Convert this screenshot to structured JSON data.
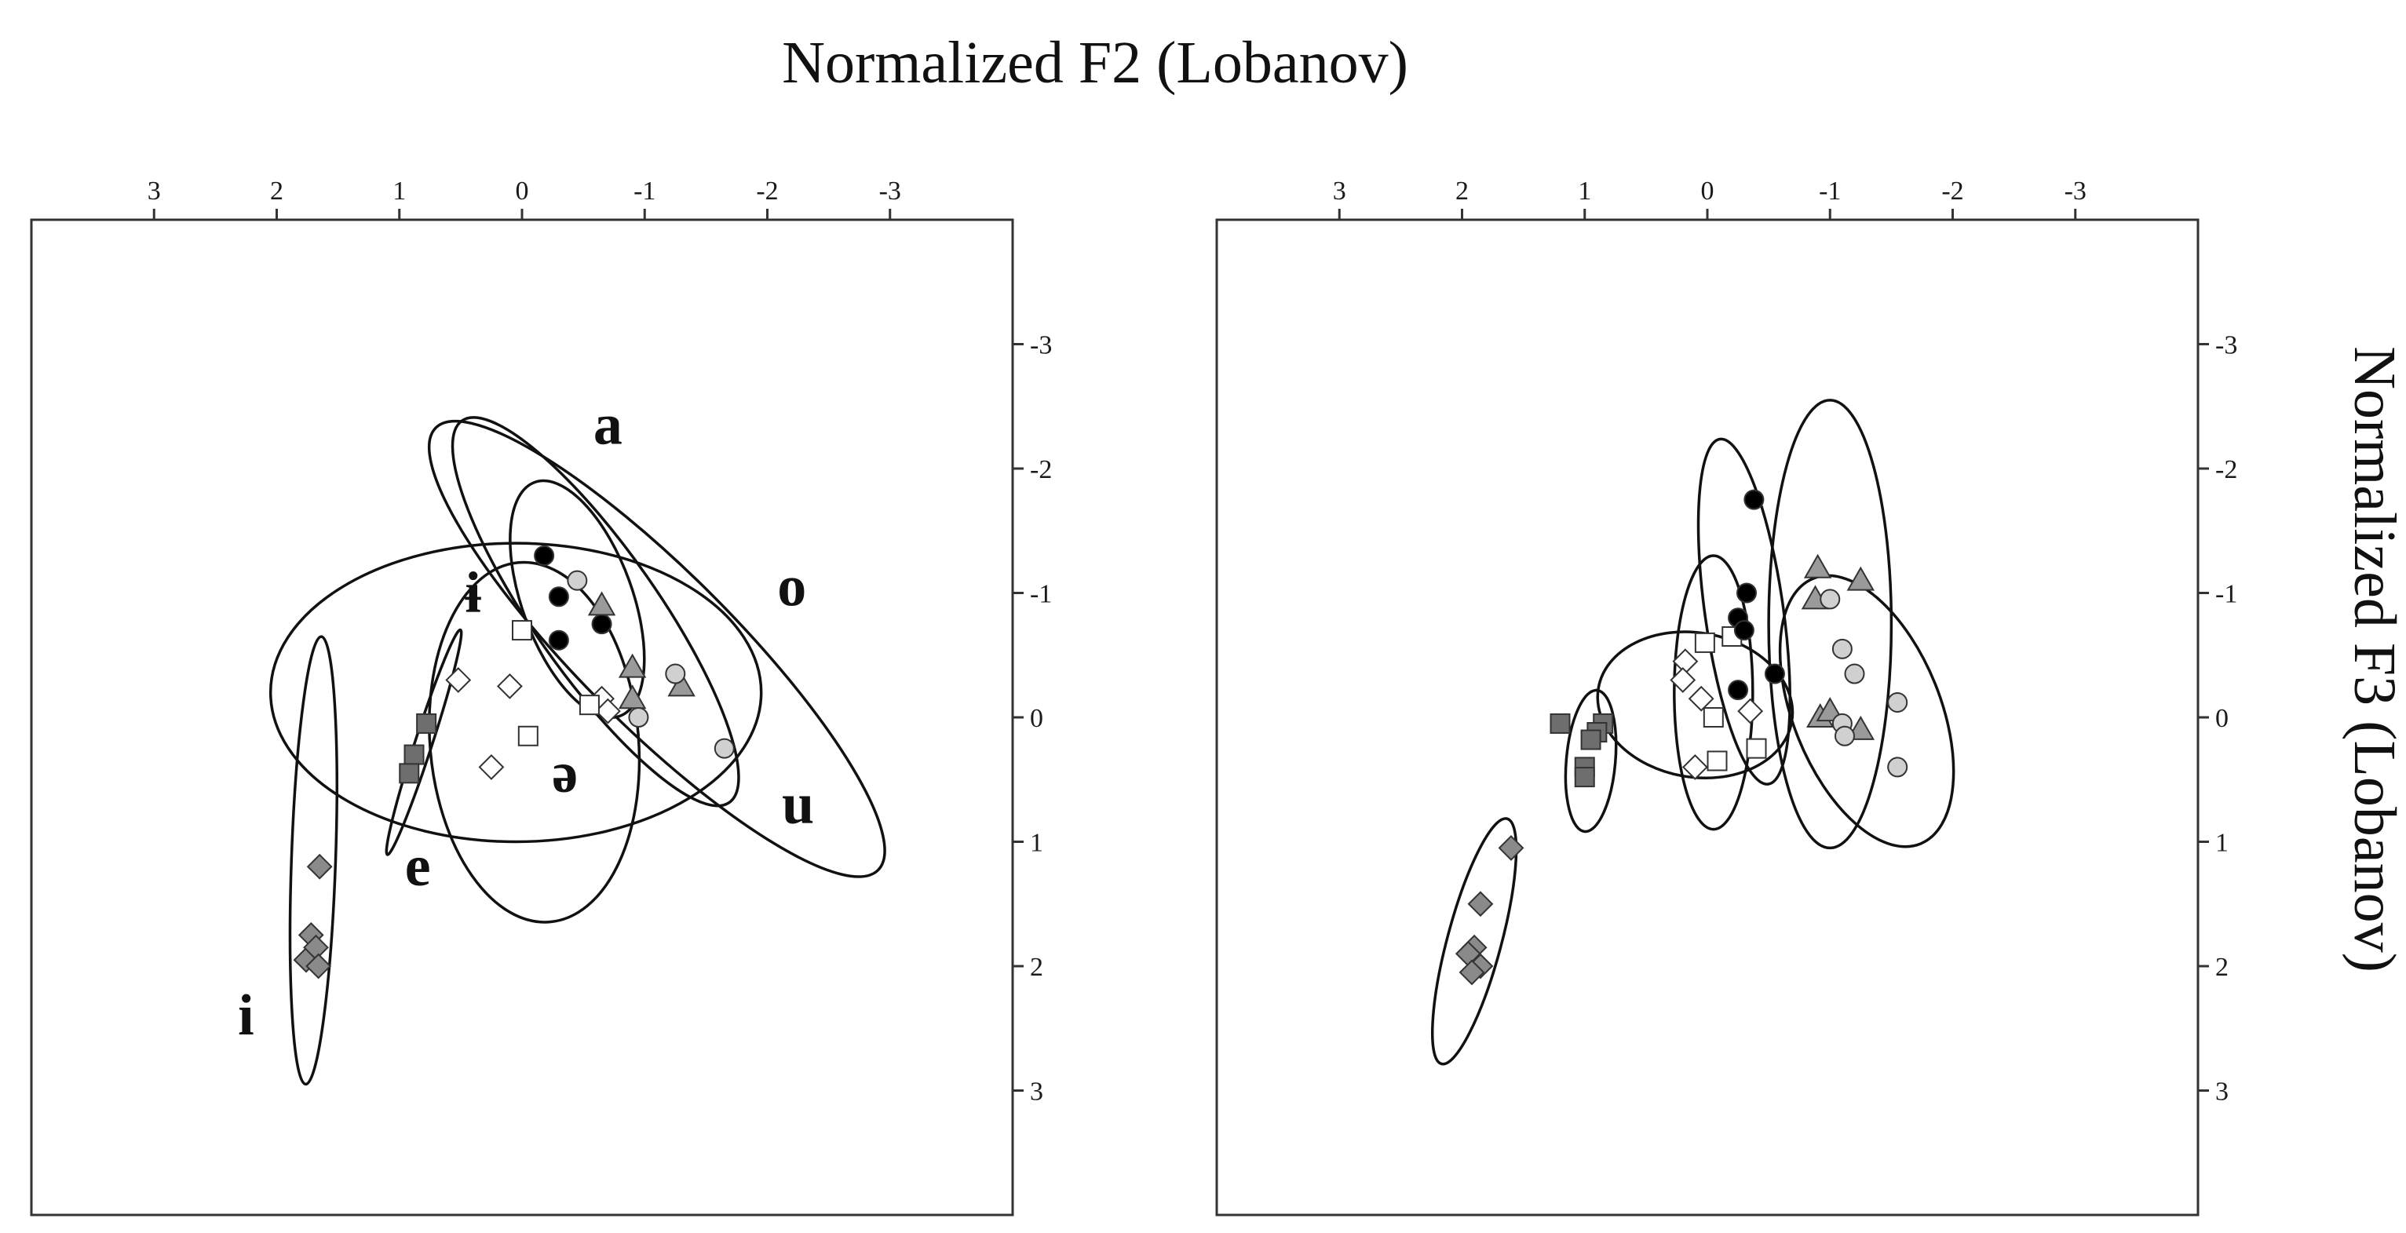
{
  "chart_data": {
    "type": "scatter",
    "title": "",
    "xlabel": "Normalized F2 (Lobanov)",
    "ylabel": "Normalized F3 (Lobanov)",
    "xaxis": {
      "reversed": true,
      "range": [
        4,
        -4
      ],
      "ticks": [
        3,
        2,
        1,
        0,
        -1,
        -2,
        -3
      ],
      "tick_labels": [
        "3",
        "2",
        "1",
        "0",
        "-1",
        "-2",
        "-3"
      ],
      "position": "top"
    },
    "yaxis": {
      "reversed": true,
      "range": [
        -4,
        4
      ],
      "ticks": [
        -3,
        -2,
        -1,
        0,
        1,
        2,
        3
      ],
      "tick_labels": [
        "-3",
        "-2",
        "-1",
        "0",
        "1",
        "2",
        "3"
      ],
      "position": "right"
    },
    "grid": false,
    "colors": {
      "black": "#000000",
      "dark_gray": "#6e6e6e",
      "mid_gray": "#9a9a9a",
      "light_gray": "#d0d0d0",
      "white": "#ffffff",
      "stroke": "#333333"
    },
    "panels": [
      {
        "name": "left",
        "vowel_labels": [
          {
            "text": "a",
            "x": -0.7,
            "y": -2.2
          },
          {
            "text": "o",
            "x": -2.2,
            "y": -0.9
          },
          {
            "text": "ɨ",
            "x": 0.4,
            "y": -0.85
          },
          {
            "text": "ə",
            "x": -0.35,
            "y": 0.6
          },
          {
            "text": "u",
            "x": -2.25,
            "y": 0.85
          },
          {
            "text": "e",
            "x": 0.85,
            "y": 1.35
          },
          {
            "text": "i",
            "x": 2.25,
            "y": 2.55
          }
        ],
        "ellipses": [
          {
            "cx": 1.7,
            "cy": 1.15,
            "rx": 0.18,
            "ry": 1.8,
            "angle": 2
          },
          {
            "cx": 0.8,
            "cy": 0.2,
            "rx": 0.07,
            "ry": 0.95,
            "angle": 18
          },
          {
            "cx": 0.05,
            "cy": -0.2,
            "rx": 2.0,
            "ry": 1.2,
            "angle": 0
          },
          {
            "cx": -0.1,
            "cy": 0.2,
            "rx": 0.85,
            "ry": 1.45,
            "angle": -5
          },
          {
            "cx": -0.45,
            "cy": -0.95,
            "rx": 0.45,
            "ry": 1.0,
            "angle": -20
          },
          {
            "cx": -0.6,
            "cy": -0.85,
            "rx": 1.9,
            "ry": 0.5,
            "angle": 55
          },
          {
            "cx": -1.1,
            "cy": -0.55,
            "rx": 2.55,
            "ry": 0.62,
            "angle": 45
          }
        ],
        "series": [
          {
            "name": "i",
            "marker": "diamond",
            "fill": "#8a8a8a",
            "x": [
              1.65,
              1.72,
              1.76,
              1.68,
              1.66
            ],
            "y": [
              1.2,
              1.75,
              1.95,
              1.85,
              2.0
            ]
          },
          {
            "name": "e",
            "marker": "square",
            "fill": "#6e6e6e",
            "x": [
              0.78,
              0.88,
              0.92
            ],
            "y": [
              0.05,
              0.3,
              0.45
            ]
          },
          {
            "name": "ɨ",
            "marker": "diamond",
            "fill": "#ffffff",
            "x": [
              0.52,
              0.1,
              0.25,
              -0.65,
              -0.7
            ],
            "y": [
              -0.3,
              -0.25,
              0.4,
              -0.15,
              -0.05
            ]
          },
          {
            "name": "ə",
            "marker": "square",
            "fill": "#ffffff",
            "x": [
              0.0,
              -0.05,
              -0.55
            ],
            "y": [
              -0.7,
              0.15,
              -0.1
            ]
          },
          {
            "name": "a",
            "marker": "circle",
            "fill": "#000000",
            "x": [
              -0.18,
              -0.3,
              -0.3,
              -0.65
            ],
            "y": [
              -1.3,
              -0.97,
              -0.62,
              -0.75
            ]
          },
          {
            "name": "o",
            "marker": "triangle",
            "fill": "#9a9a9a",
            "x": [
              -0.65,
              -0.9,
              -0.9,
              -1.3
            ],
            "y": [
              -0.9,
              -0.4,
              -0.15,
              -0.25
            ]
          },
          {
            "name": "u",
            "marker": "circle",
            "fill": "#d0d0d0",
            "x": [
              -0.45,
              -1.25,
              -1.65,
              -0.95
            ],
            "y": [
              -1.1,
              -0.35,
              0.25,
              0.0
            ]
          }
        ]
      },
      {
        "name": "right",
        "vowel_labels": [],
        "ellipses": [
          {
            "cx": 1.9,
            "cy": 1.8,
            "rx": 0.22,
            "ry": 1.02,
            "angle": 15
          },
          {
            "cx": 0.95,
            "cy": 0.35,
            "rx": 0.2,
            "ry": 0.57,
            "angle": 5
          },
          {
            "cx": 0.1,
            "cy": -0.1,
            "rx": 0.8,
            "ry": 0.58,
            "angle": 10
          },
          {
            "cx": -0.05,
            "cy": -0.2,
            "rx": 0.32,
            "ry": 1.1,
            "angle": 0
          },
          {
            "cx": -0.3,
            "cy": -0.85,
            "rx": 0.32,
            "ry": 1.4,
            "angle": -8
          },
          {
            "cx": -1.0,
            "cy": -0.75,
            "rx": 0.5,
            "ry": 1.8,
            "angle": 0
          },
          {
            "cx": -1.3,
            "cy": -0.05,
            "rx": 0.6,
            "ry": 1.15,
            "angle": -22
          }
        ],
        "series": [
          {
            "name": "i",
            "marker": "diamond",
            "fill": "#8a8a8a",
            "x": [
              1.6,
              1.85,
              1.9,
              1.95,
              1.85,
              1.92
            ],
            "y": [
              1.05,
              1.5,
              1.85,
              1.9,
              2.0,
              2.05
            ]
          },
          {
            "name": "e",
            "marker": "square",
            "fill": "#6e6e6e",
            "x": [
              1.2,
              0.85,
              0.9,
              0.95,
              1.0,
              1.0
            ],
            "y": [
              0.05,
              0.05,
              0.12,
              0.18,
              0.4,
              0.48
            ]
          },
          {
            "name": "ɨ",
            "marker": "diamond",
            "fill": "#ffffff",
            "x": [
              0.18,
              0.2,
              0.05,
              -0.35,
              0.1
            ],
            "y": [
              -0.45,
              -0.3,
              -0.15,
              -0.05,
              0.4
            ]
          },
          {
            "name": "ə",
            "marker": "square",
            "fill": "#ffffff",
            "x": [
              0.02,
              -0.2,
              -0.05,
              -0.4,
              -0.08
            ],
            "y": [
              -0.6,
              -0.65,
              0.0,
              0.25,
              0.35
            ]
          },
          {
            "name": "a",
            "marker": "circle",
            "fill": "#000000",
            "x": [
              -0.38,
              -0.32,
              -0.25,
              -0.3,
              -0.55,
              -0.25
            ],
            "y": [
              -1.75,
              -1.0,
              -0.8,
              -0.7,
              -0.35,
              -0.22
            ]
          },
          {
            "name": "o",
            "marker": "triangle",
            "fill": "#9a9a9a",
            "x": [
              -0.9,
              -0.88,
              -1.25,
              -0.92,
              -1.0,
              -1.25
            ],
            "y": [
              -1.2,
              -0.95,
              -1.1,
              0.0,
              -0.05,
              0.1
            ]
          },
          {
            "name": "u",
            "marker": "circle",
            "fill": "#d0d0d0",
            "x": [
              -1.0,
              -1.1,
              -1.2,
              -1.1,
              -1.55,
              -1.55,
              -1.12
            ],
            "y": [
              -0.95,
              -0.55,
              -0.35,
              0.05,
              -0.12,
              0.4,
              0.15
            ]
          }
        ]
      }
    ]
  }
}
